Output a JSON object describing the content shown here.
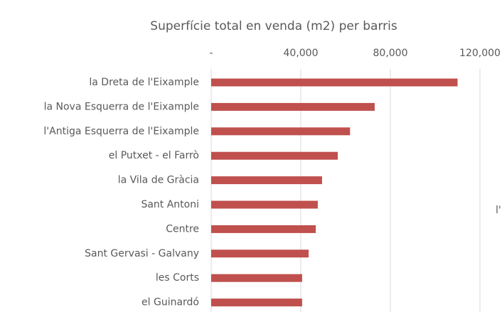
{
  "chart_data": {
    "type": "bar",
    "orientation": "horizontal",
    "title": "Superfície total en venda (m2) per barris",
    "categories": [
      "la Dreta de l'Eixample",
      "la Nova Esquerra de l'Eixample",
      "l'Antiga Esquerra de l'Eixample",
      "el Putxet - el Farrò",
      "la Vila de Gràcia",
      "Sant Antoni",
      "Centre",
      "Sant Gervasi - Galvany",
      "les Corts",
      "el Guinardó"
    ],
    "values": [
      110000,
      73000,
      62000,
      56500,
      49500,
      47600,
      46700,
      43500,
      40600,
      40600
    ],
    "color": "#c0504d",
    "xlim": [
      0,
      120000
    ],
    "xticks": [
      {
        "value": 0,
        "label": "-"
      },
      {
        "value": 40000,
        "label": "40,000"
      },
      {
        "value": 80000,
        "label": "80,000"
      },
      {
        "value": 120000,
        "label": "120,000"
      }
    ],
    "grid": true,
    "annotation": "l'"
  }
}
